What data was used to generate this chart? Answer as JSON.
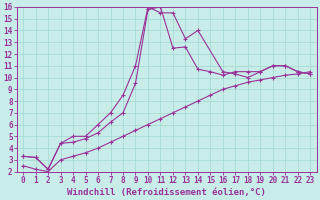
{
  "xlabel": "Windchill (Refroidissement éolien,°C)",
  "background_color": "#c8ece8",
  "line_color": "#993399",
  "xlim": [
    -0.5,
    23.5
  ],
  "ylim": [
    2,
    16
  ],
  "xticks": [
    0,
    1,
    2,
    3,
    4,
    5,
    6,
    7,
    8,
    9,
    10,
    11,
    12,
    13,
    14,
    15,
    16,
    17,
    18,
    19,
    20,
    21,
    22,
    23
  ],
  "yticks": [
    2,
    3,
    4,
    5,
    6,
    7,
    8,
    9,
    10,
    11,
    12,
    13,
    14,
    15,
    16
  ],
  "series1_x": [
    0,
    1,
    2,
    3,
    4,
    5,
    6,
    7,
    8,
    9,
    10,
    11,
    12,
    13,
    14,
    16,
    17,
    18,
    19,
    20,
    21,
    22,
    23
  ],
  "series1_y": [
    3.3,
    3.2,
    2.2,
    4.4,
    5.0,
    5.0,
    6.0,
    7.0,
    8.5,
    11.0,
    16.0,
    15.5,
    15.5,
    13.3,
    14.0,
    10.5,
    10.3,
    10.0,
    10.5,
    11.0,
    11.0,
    10.5,
    10.3
  ],
  "series2_x": [
    0,
    1,
    2,
    3,
    4,
    5,
    6,
    7,
    8,
    9,
    10,
    11,
    12,
    13,
    14,
    15,
    16,
    17,
    18,
    19,
    20,
    21,
    22,
    23
  ],
  "series2_y": [
    3.3,
    3.2,
    2.2,
    4.4,
    4.5,
    4.8,
    5.3,
    6.2,
    7.0,
    9.5,
    15.8,
    16.0,
    12.5,
    12.6,
    10.7,
    10.5,
    10.2,
    10.5,
    10.5,
    10.5,
    11.0,
    11.0,
    10.5,
    10.3
  ],
  "series3_x": [
    0,
    1,
    2,
    3,
    4,
    5,
    6,
    7,
    8,
    9,
    10,
    11,
    12,
    13,
    14,
    15,
    16,
    17,
    18,
    19,
    20,
    21,
    22,
    23
  ],
  "series3_y": [
    2.5,
    2.2,
    2.0,
    3.0,
    3.3,
    3.6,
    4.0,
    4.5,
    5.0,
    5.5,
    6.0,
    6.5,
    7.0,
    7.5,
    8.0,
    8.5,
    9.0,
    9.3,
    9.6,
    9.8,
    10.0,
    10.2,
    10.3,
    10.5
  ],
  "grid_color": "#a0d8d0",
  "tick_fontsize": 5.5,
  "xlabel_fontsize": 6.5,
  "marker": "+"
}
